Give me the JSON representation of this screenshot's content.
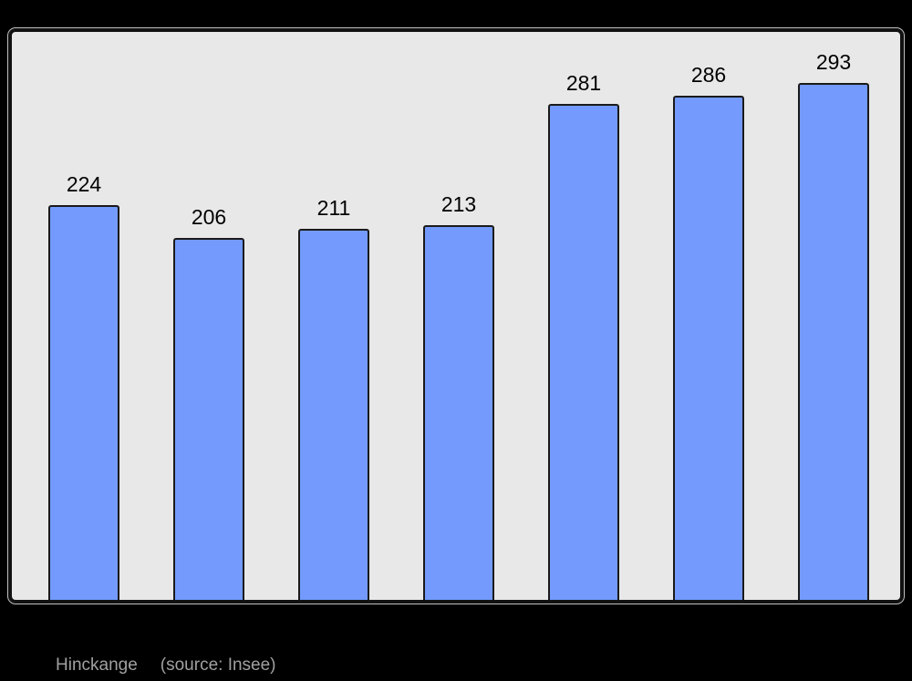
{
  "canvas": {
    "background_color": "#000000"
  },
  "chart_data": {
    "type": "bar",
    "values": [
      224,
      206,
      211,
      213,
      281,
      286,
      293
    ],
    "value_labels": [
      "224",
      "206",
      "211",
      "213",
      "281",
      "286",
      "293"
    ],
    "title": "",
    "xlabel": "",
    "ylabel": "",
    "ylim": [
      0,
      320
    ],
    "grid": false,
    "legend": "none",
    "plot_background": "#e8e8e8",
    "bar_color": "#739afc",
    "bar_border_color": "#1a1a1a",
    "value_label_color": "#000000",
    "frame_border_color": "#111111"
  },
  "caption": {
    "location": "Hinckange",
    "source": "(source: Insee)",
    "color": "#a0a0a0"
  }
}
